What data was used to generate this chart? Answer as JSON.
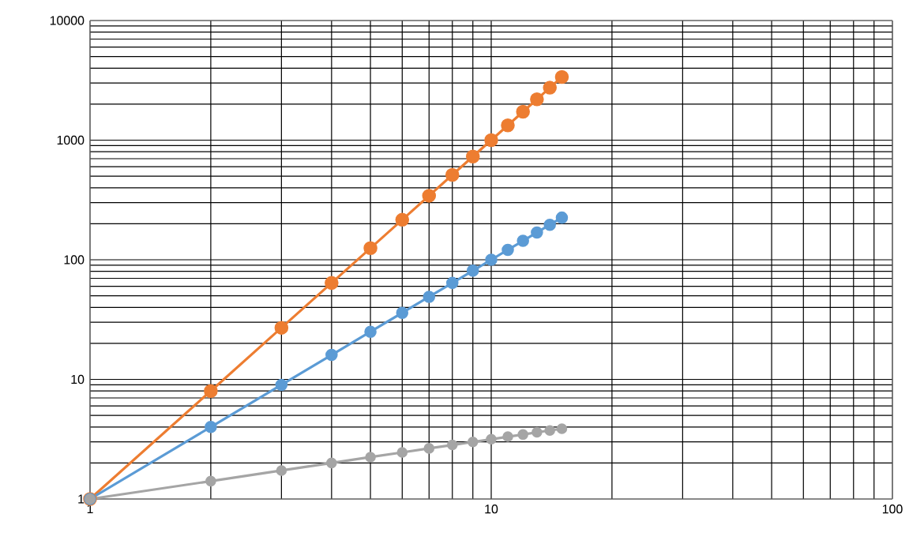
{
  "chart_data": {
    "type": "line",
    "log": "xy",
    "grid": true,
    "marker": "circle",
    "line_style": "solid",
    "x": [
      1,
      2,
      3,
      4,
      5,
      6,
      7,
      8,
      9,
      10,
      11,
      12,
      13,
      14,
      15
    ],
    "xlim": [
      1,
      100
    ],
    "xticks": [
      1,
      10,
      100
    ],
    "ylim": [
      1,
      10000
    ],
    "yticks": [
      1,
      10,
      100,
      1000,
      10000
    ],
    "series": [
      {
        "color": "#ed7d31",
        "values": [
          1,
          8,
          27,
          64,
          125,
          216,
          343,
          512,
          729,
          1000,
          1331,
          1728,
          2197,
          2744,
          3375
        ]
      },
      {
        "color": "#5b9bd5",
        "values": [
          1,
          4,
          9,
          16,
          25,
          36,
          49,
          64,
          81,
          100,
          121,
          144,
          169,
          196,
          225
        ]
      },
      {
        "color": "#a5a5a5",
        "values": [
          1,
          1.41,
          1.73,
          2,
          2.24,
          2.45,
          2.65,
          2.83,
          3,
          3.16,
          3.32,
          3.46,
          3.61,
          3.74,
          3.87
        ]
      }
    ]
  }
}
